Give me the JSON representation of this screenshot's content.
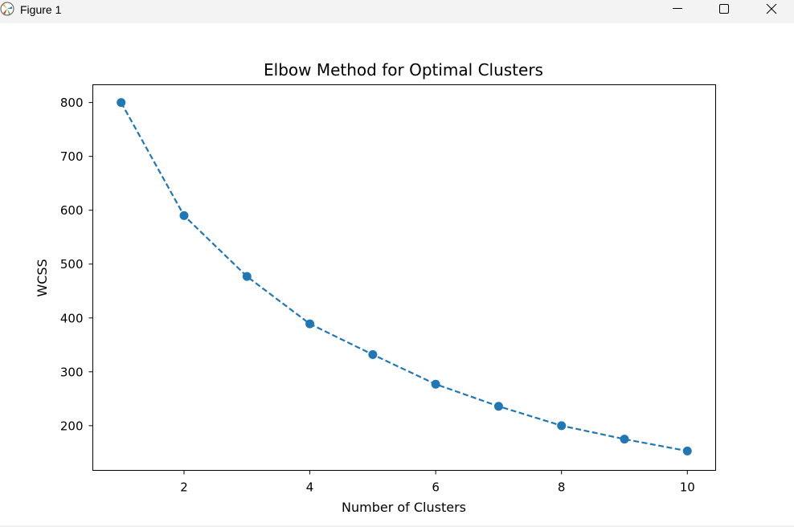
{
  "window": {
    "title": "Figure 1",
    "icons": {
      "app": "matplotlib-figure-icon",
      "minimize": "minimize-icon",
      "maximize": "maximize-icon",
      "close": "close-icon"
    }
  },
  "chart_data": {
    "type": "line",
    "title": "Elbow Method for Optimal Clusters",
    "xlabel": "Number of Clusters",
    "ylabel": "WCSS",
    "x": [
      1,
      2,
      3,
      4,
      5,
      6,
      7,
      8,
      9,
      10
    ],
    "series": [
      {
        "values": [
          800,
          590,
          477,
          389,
          332,
          277,
          236,
          200,
          175,
          153
        ],
        "color": "#1f77b4",
        "linestyle": "dashed",
        "marker": "circle"
      }
    ],
    "xticks": [
      2,
      4,
      6,
      8,
      10
    ],
    "yticks": [
      200,
      300,
      400,
      500,
      600,
      700,
      800
    ],
    "xlim": [
      0.55,
      10.45
    ],
    "ylim": [
      117,
      833
    ],
    "grid": false,
    "legend": "none"
  }
}
